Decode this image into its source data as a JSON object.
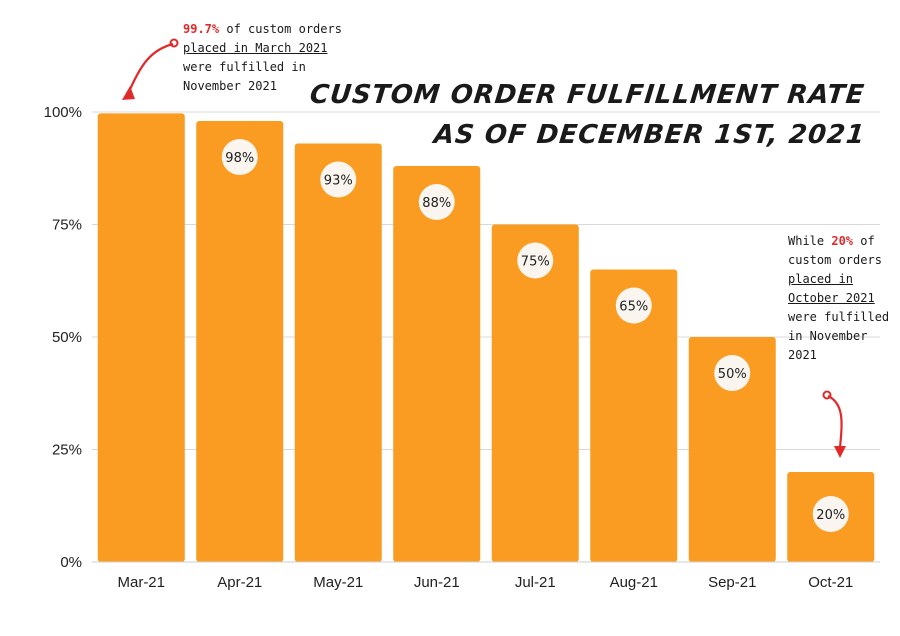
{
  "chart_data": {
    "type": "bar",
    "title": "CUSTOM ORDER FULFILLMENT RATE",
    "subtitle": "AS OF DECEMBER 1ST, 2021",
    "categories": [
      "Mar-21",
      "Apr-21",
      "May-21",
      "Jun-21",
      "Jul-21",
      "Aug-21",
      "Sep-21",
      "Oct-21"
    ],
    "values": [
      99.7,
      98,
      93,
      88,
      75,
      65,
      50,
      20
    ],
    "data_labels": [
      "",
      "98%",
      "93%",
      "88%",
      "75%",
      "65%",
      "50%",
      "20%"
    ],
    "y_ticks": [
      "0%",
      "25%",
      "50%",
      "75%",
      "100%"
    ],
    "ylim": [
      0,
      100
    ],
    "xlabel": "",
    "ylabel": "",
    "grid": true,
    "bar_color": "#f99c21",
    "label_bubble_color": "#faf6ef",
    "annotations": [
      {
        "target": "Mar-21",
        "lines": [
          {
            "parts": [
              {
                "text": "99.7%",
                "style": "highlight"
              },
              {
                "text": " of custom orders",
                "style": "plain"
              }
            ]
          },
          {
            "parts": [
              {
                "text": "placed in March 2021",
                "style": "underline"
              }
            ]
          },
          {
            "parts": [
              {
                "text": "were fulfilled in",
                "style": "plain"
              }
            ]
          },
          {
            "parts": [
              {
                "text": "November 2021",
                "style": "plain"
              }
            ]
          }
        ]
      },
      {
        "target": "Oct-21",
        "lines": [
          {
            "parts": [
              {
                "text": "While ",
                "style": "plain"
              },
              {
                "text": "20%",
                "style": "highlight"
              },
              {
                "text": " of",
                "style": "plain"
              }
            ]
          },
          {
            "parts": [
              {
                "text": "custom orders",
                "style": "plain"
              }
            ]
          },
          {
            "parts": [
              {
                "text": "placed in",
                "style": "underline"
              }
            ]
          },
          {
            "parts": [
              {
                "text": "October 2021",
                "style": "underline"
              }
            ]
          },
          {
            "parts": [
              {
                "text": "were fulfilled",
                "style": "plain"
              }
            ]
          },
          {
            "parts": [
              {
                "text": "in November",
                "style": "plain"
              }
            ]
          },
          {
            "parts": [
              {
                "text": "2021",
                "style": "plain"
              }
            ]
          }
        ]
      }
    ],
    "accent_color": "#e02a2a"
  }
}
